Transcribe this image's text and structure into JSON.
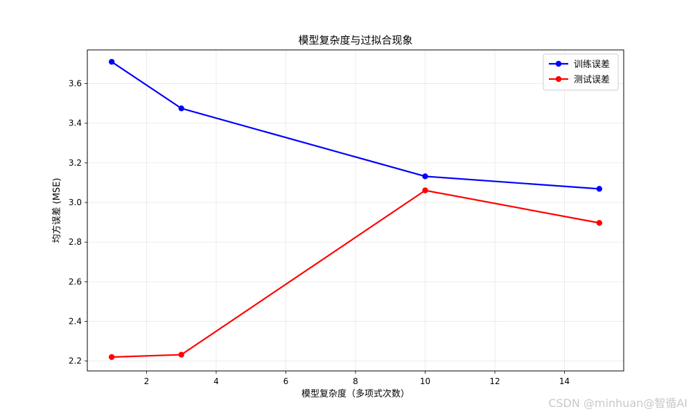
{
  "chart_data": {
    "type": "line",
    "title": "模型复杂度与过拟合现象",
    "xlabel": "模型复杂度（多项式次数）",
    "ylabel": "均方误差 (MSE)",
    "x": [
      1,
      3,
      10,
      15
    ],
    "series": [
      {
        "name": "训练误差",
        "values": [
          3.71,
          3.475,
          3.132,
          3.069
        ],
        "color": "#0000ff"
      },
      {
        "name": "测试误差",
        "values": [
          2.22,
          2.232,
          3.061,
          2.897
        ],
        "color": "#ff0000"
      }
    ],
    "xlim": [
      0.3,
      15.7
    ],
    "ylim": [
      2.15,
      3.77
    ],
    "xticks": [
      2,
      4,
      6,
      8,
      10,
      12,
      14
    ],
    "yticks": [
      2.2,
      2.4,
      2.6,
      2.8,
      3.0,
      3.2,
      3.4,
      3.6
    ],
    "ytick_labels": [
      "2.2",
      "2.4",
      "2.6",
      "2.8",
      "3.0",
      "3.2",
      "3.4",
      "3.6"
    ],
    "grid": true,
    "legend_position": "top-right"
  },
  "watermark": "CSDN @minhuan@智循AI"
}
